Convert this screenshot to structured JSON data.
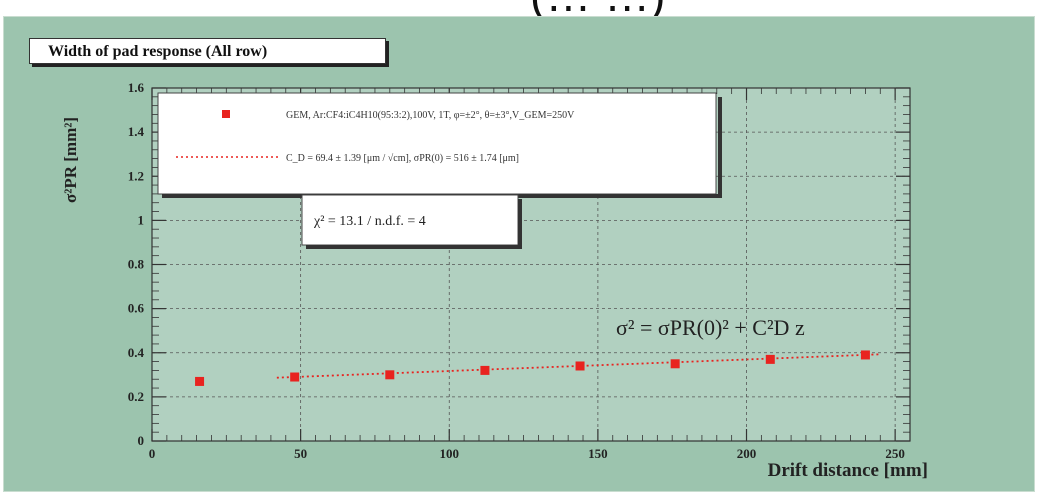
{
  "header_fragment": "(… …)",
  "panel_title": "Width of pad response (All row)",
  "chart_data": {
    "type": "scatter",
    "title": "Width of pad response (All row)",
    "xlabel": "Drift distance [mm]",
    "ylabel": "σ²PR [mm²]",
    "xlim": [
      0,
      255
    ],
    "ylim": [
      0,
      1.6
    ],
    "x_ticks": [
      "0",
      "50",
      "100",
      "150",
      "200",
      "250"
    ],
    "y_ticks": [
      "0",
      "0.2",
      "0.4",
      "0.6",
      "0.8",
      "1",
      "1.2",
      "1.4",
      "1.6"
    ],
    "grid": true,
    "legend_position": "top-left",
    "series": [
      {
        "name": "GEM, Ar:CF4:iC4H10(95:3:2),100V, 1T, φ=±2°, θ=±3°,V_GEM=250V",
        "style": "markers",
        "color": "#e8231f",
        "x": [
          16,
          48,
          80,
          112,
          144,
          176,
          208,
          240
        ],
        "y": [
          0.27,
          0.29,
          0.3,
          0.32,
          0.34,
          0.35,
          0.37,
          0.39
        ]
      },
      {
        "name": "C_D = 69.4 ± 1.39 [μm / √cm], σPR(0) = 516 ± 1.74 [μm]",
        "style": "dotted-line",
        "color": "#e8231f",
        "x": [
          42,
          245
        ],
        "y": [
          0.287,
          0.393
        ]
      }
    ],
    "annotations": [
      "χ² = 13.1 / n.d.f. = 4",
      "σ² = σPR(0)² + C²D z"
    ]
  }
}
